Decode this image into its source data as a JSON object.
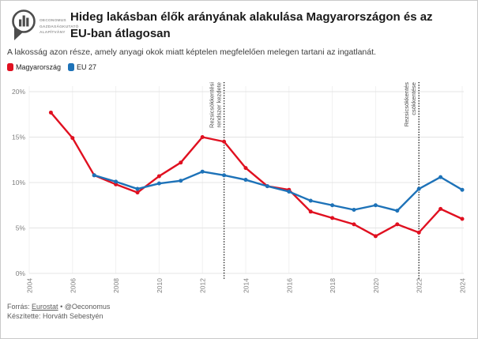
{
  "logo": {
    "org_lines": [
      "OECONOMUS",
      "GAZDASÁGKUTATÓ",
      "ALAPÍTVÁNY"
    ]
  },
  "header": {
    "title_lines": [
      "Hideg lakásban élők arányának alakulása Magyarországon és az",
      "EU-ban átlagosan"
    ],
    "subtitle": "A lakosság azon része, amely anyagi okok miatt képtelen megfelelően melegen tartani az ingatlanát."
  },
  "legend": [
    {
      "label": "Magyarország",
      "color": "#e01020"
    },
    {
      "label": "EU 27",
      "color": "#1d72b8"
    }
  ],
  "chart_data": {
    "type": "line",
    "title": "Hideg lakásban élők arányának alakulása Magyarországon és az EU-ban átlagosan",
    "xlabel": "",
    "ylabel": "",
    "ylim": [
      0,
      20
    ],
    "xlim": [
      2004,
      2024
    ],
    "grid": true,
    "legend_position": "top-left",
    "yticks": [
      {
        "value": 0,
        "label": "0%"
      },
      {
        "value": 5,
        "label": "5%"
      },
      {
        "value": 10,
        "label": "10%"
      },
      {
        "value": 15,
        "label": "15%"
      },
      {
        "value": 20,
        "label": "20%"
      }
    ],
    "xticks": [
      2004,
      2006,
      2008,
      2010,
      2012,
      2014,
      2016,
      2018,
      2020,
      2022,
      2024
    ],
    "series": [
      {
        "name": "Magyarország",
        "color": "#e01020",
        "years": [
          2005,
          2006,
          2007,
          2008,
          2009,
          2010,
          2011,
          2012,
          2013,
          2014,
          2015,
          2016,
          2017,
          2018,
          2019,
          2020,
          2021,
          2022,
          2023,
          2024
        ],
        "values": [
          17.7,
          14.9,
          10.8,
          9.8,
          8.9,
          10.7,
          12.2,
          15.0,
          14.5,
          11.6,
          9.6,
          9.2,
          6.8,
          6.1,
          5.4,
          4.1,
          5.4,
          4.5,
          7.1,
          6.0
        ]
      },
      {
        "name": "EU 27",
        "color": "#1d72b8",
        "years": [
          2007,
          2008,
          2009,
          2010,
          2011,
          2012,
          2013,
          2014,
          2015,
          2016,
          2017,
          2018,
          2019,
          2020,
          2021,
          2022,
          2023,
          2024
        ],
        "values": [
          10.8,
          10.1,
          9.3,
          9.9,
          10.2,
          11.2,
          10.8,
          10.3,
          9.6,
          9.0,
          8.0,
          7.5,
          7.0,
          7.5,
          6.9,
          9.3,
          10.6,
          9.2
        ]
      }
    ],
    "annotations": [
      {
        "year": 2013,
        "label_lines": [
          "Rezsicsökkentési",
          "rendszer kezdete"
        ]
      },
      {
        "year": 2022,
        "label_lines": [
          "Rezsicsökkentés",
          "csökkentése"
        ]
      }
    ]
  },
  "footer": {
    "source_prefix": "Forrás:",
    "source_link": "Eurostat",
    "source_suffix": "• @Oeconomus",
    "credit": "Készítette: Horváth Sebestyén"
  }
}
